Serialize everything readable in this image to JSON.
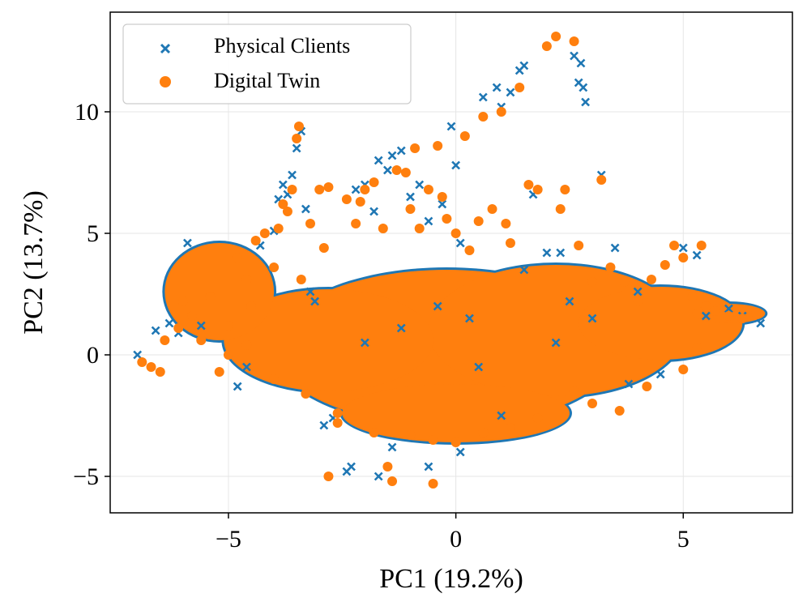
{
  "chart_data": {
    "type": "scatter",
    "title": "",
    "xlabel": "PC1 (19.2%)",
    "ylabel": "PC2 (13.7%)",
    "xlim": [
      -7.6,
      7.4
    ],
    "ylim": [
      -6.5,
      14.1
    ],
    "xticks": [
      -5,
      0,
      5
    ],
    "yticks": [
      -5,
      0,
      5,
      10
    ],
    "xtick_labels": [
      "−5",
      "0",
      "5"
    ],
    "ytick_labels": [
      "−5",
      "0",
      "5",
      "10"
    ],
    "grid": true,
    "legend_position": "top-left",
    "series": [
      {
        "name": "Physical Clients",
        "marker": "x",
        "color": "#1f77b4",
        "points": [
          [
            -7.0,
            0.0
          ],
          [
            -6.6,
            1.0
          ],
          [
            -6.3,
            1.3
          ],
          [
            -6.1,
            0.9
          ],
          [
            -5.9,
            4.6
          ],
          [
            -5.6,
            1.2
          ],
          [
            -4.8,
            -1.3
          ],
          [
            -4.6,
            -0.5
          ],
          [
            -4.3,
            4.5
          ],
          [
            -4.0,
            5.1
          ],
          [
            -3.9,
            6.4
          ],
          [
            -3.8,
            7.0
          ],
          [
            -3.7,
            6.6
          ],
          [
            -3.6,
            7.4
          ],
          [
            -3.5,
            8.5
          ],
          [
            -3.4,
            9.2
          ],
          [
            -3.3,
            6.0
          ],
          [
            -3.2,
            2.6
          ],
          [
            -3.1,
            2.2
          ],
          [
            -2.9,
            -2.9
          ],
          [
            -2.7,
            -2.6
          ],
          [
            -2.4,
            -4.8
          ],
          [
            -2.3,
            -4.6
          ],
          [
            -2.2,
            6.8
          ],
          [
            -2.0,
            7.0
          ],
          [
            -1.8,
            5.9
          ],
          [
            -1.7,
            8.0
          ],
          [
            -1.5,
            7.6
          ],
          [
            -1.4,
            8.2
          ],
          [
            -1.2,
            8.4
          ],
          [
            -1.0,
            6.5
          ],
          [
            -0.8,
            7.0
          ],
          [
            -0.6,
            5.5
          ],
          [
            -0.3,
            6.2
          ],
          [
            -0.1,
            9.4
          ],
          [
            0.0,
            7.8
          ],
          [
            0.1,
            4.6
          ],
          [
            0.3,
            1.5
          ],
          [
            0.6,
            10.6
          ],
          [
            0.9,
            11.0
          ],
          [
            1.0,
            10.2
          ],
          [
            1.2,
            10.8
          ],
          [
            1.4,
            11.7
          ],
          [
            1.5,
            11.9
          ],
          [
            1.7,
            6.6
          ],
          [
            2.0,
            4.2
          ],
          [
            2.3,
            4.2
          ],
          [
            2.6,
            12.3
          ],
          [
            2.7,
            11.2
          ],
          [
            2.75,
            12.0
          ],
          [
            2.8,
            11.0
          ],
          [
            2.85,
            10.4
          ],
          [
            3.0,
            1.5
          ],
          [
            3.2,
            7.4
          ],
          [
            3.5,
            4.4
          ],
          [
            4.0,
            2.6
          ],
          [
            4.5,
            -0.8
          ],
          [
            5.0,
            4.4
          ],
          [
            5.3,
            4.1
          ],
          [
            5.5,
            1.6
          ],
          [
            6.0,
            1.9
          ],
          [
            6.3,
            1.6
          ],
          [
            6.7,
            1.3
          ],
          [
            -0.6,
            -4.6
          ],
          [
            0.1,
            -4.0
          ],
          [
            -1.7,
            -5.0
          ],
          [
            -1.4,
            -3.8
          ],
          [
            2.2,
            0.5
          ],
          [
            1.0,
            -2.5
          ],
          [
            -2.0,
            0.5
          ],
          [
            3.8,
            -1.2
          ],
          [
            1.5,
            3.5
          ],
          [
            -0.4,
            2.0
          ],
          [
            0.5,
            -0.5
          ],
          [
            -1.2,
            1.1
          ],
          [
            2.5,
            2.2
          ]
        ]
      },
      {
        "name": "Digital Twin",
        "marker": "o",
        "color": "#ff7f0e",
        "points": [
          [
            -6.9,
            -0.3
          ],
          [
            -6.7,
            -0.5
          ],
          [
            -6.5,
            -0.7
          ],
          [
            -6.4,
            0.6
          ],
          [
            -6.1,
            1.1
          ],
          [
            -6.0,
            2.2
          ],
          [
            -5.8,
            1.6
          ],
          [
            -5.6,
            0.6
          ],
          [
            -5.4,
            2.4
          ],
          [
            -5.2,
            -0.7
          ],
          [
            -5.0,
            0.0
          ],
          [
            -4.8,
            4.0
          ],
          [
            -4.6,
            3.1
          ],
          [
            -4.4,
            4.7
          ],
          [
            -4.2,
            5.0
          ],
          [
            -4.0,
            3.6
          ],
          [
            -3.9,
            5.2
          ],
          [
            -3.8,
            6.2
          ],
          [
            -3.7,
            5.9
          ],
          [
            -3.6,
            6.8
          ],
          [
            -3.5,
            8.9
          ],
          [
            -3.45,
            9.4
          ],
          [
            -3.4,
            3.1
          ],
          [
            -3.2,
            5.4
          ],
          [
            -3.0,
            6.8
          ],
          [
            -2.9,
            4.4
          ],
          [
            -2.8,
            6.9
          ],
          [
            -2.8,
            -5.0
          ],
          [
            -2.6,
            -2.8
          ],
          [
            -2.4,
            6.4
          ],
          [
            -2.2,
            5.4
          ],
          [
            -2.1,
            6.3
          ],
          [
            -2.0,
            6.8
          ],
          [
            -1.8,
            7.1
          ],
          [
            -1.6,
            5.2
          ],
          [
            -1.5,
            -4.6
          ],
          [
            -1.4,
            -5.2
          ],
          [
            -1.3,
            7.6
          ],
          [
            -1.1,
            7.5
          ],
          [
            -1.0,
            6.0
          ],
          [
            -0.9,
            8.5
          ],
          [
            -0.8,
            5.2
          ],
          [
            -0.6,
            6.8
          ],
          [
            -0.4,
            8.6
          ],
          [
            -0.5,
            -5.3
          ],
          [
            -0.3,
            6.5
          ],
          [
            -0.2,
            5.6
          ],
          [
            0.0,
            5.0
          ],
          [
            0.2,
            9.0
          ],
          [
            0.3,
            4.3
          ],
          [
            0.5,
            5.5
          ],
          [
            0.6,
            9.8
          ],
          [
            0.8,
            6.0
          ],
          [
            1.0,
            10.0
          ],
          [
            1.1,
            5.4
          ],
          [
            1.2,
            4.6
          ],
          [
            1.4,
            11.0
          ],
          [
            1.6,
            7.0
          ],
          [
            1.8,
            6.8
          ],
          [
            2.0,
            12.7
          ],
          [
            2.2,
            13.1
          ],
          [
            2.3,
            6.0
          ],
          [
            2.4,
            6.8
          ],
          [
            2.6,
            12.9
          ],
          [
            2.7,
            4.5
          ],
          [
            3.0,
            3.0
          ],
          [
            3.2,
            7.2
          ],
          [
            3.4,
            3.6
          ],
          [
            3.7,
            3.0
          ],
          [
            4.0,
            2.2
          ],
          [
            4.3,
            3.1
          ],
          [
            4.6,
            3.7
          ],
          [
            4.8,
            4.5
          ],
          [
            5.0,
            4.0
          ],
          [
            5.2,
            2.4
          ],
          [
            5.4,
            4.5
          ],
          [
            5.5,
            2.0
          ],
          [
            5.7,
            1.8
          ],
          [
            6.0,
            1.6
          ],
          [
            6.3,
            1.5
          ],
          [
            6.6,
            1.7
          ],
          [
            5.3,
            0.3
          ],
          [
            5.0,
            -0.6
          ],
          [
            4.2,
            -1.3
          ],
          [
            3.6,
            -2.3
          ],
          [
            3.0,
            -2.0
          ],
          [
            2.6,
            -1.5
          ],
          [
            1.8,
            -2.6
          ],
          [
            1.2,
            -3.0
          ],
          [
            0.6,
            -3.2
          ],
          [
            0.0,
            -3.6
          ],
          [
            -0.5,
            -3.5
          ],
          [
            -1.0,
            -3.3
          ],
          [
            -1.8,
            -3.2
          ],
          [
            -2.6,
            -2.4
          ],
          [
            -3.3,
            -1.6
          ],
          [
            -4.0,
            -1.0
          ],
          [
            -4.6,
            0.4
          ],
          [
            -5.0,
            1.2
          ],
          [
            -4.5,
            2.0
          ]
        ]
      }
    ],
    "dense_clouds": [
      {
        "series": "Digital Twin",
        "description_ellipse_data_units": [
          {
            "cx": -0.2,
            "cy": 0.3,
            "rx": 3.8,
            "ry": 3.2
          },
          {
            "cx": 2.2,
            "cy": 1.0,
            "rx": 2.8,
            "ry": 2.7
          },
          {
            "cx": -2.8,
            "cy": 0.6,
            "rx": 2.3,
            "ry": 2.1
          },
          {
            "cx": 4.5,
            "cy": 1.3,
            "rx": 1.8,
            "ry": 1.5
          },
          {
            "cx": -5.2,
            "cy": 2.6,
            "rx": 1.2,
            "ry": 2.0
          },
          {
            "cx": 0.0,
            "cy": -2.4,
            "rx": 2.5,
            "ry": 1.2
          },
          {
            "cx": 6.0,
            "cy": 1.7,
            "rx": 0.8,
            "ry": 0.4
          }
        ]
      }
    ]
  },
  "legend": {
    "entries": [
      "Physical Clients",
      "Digital Twin"
    ]
  }
}
